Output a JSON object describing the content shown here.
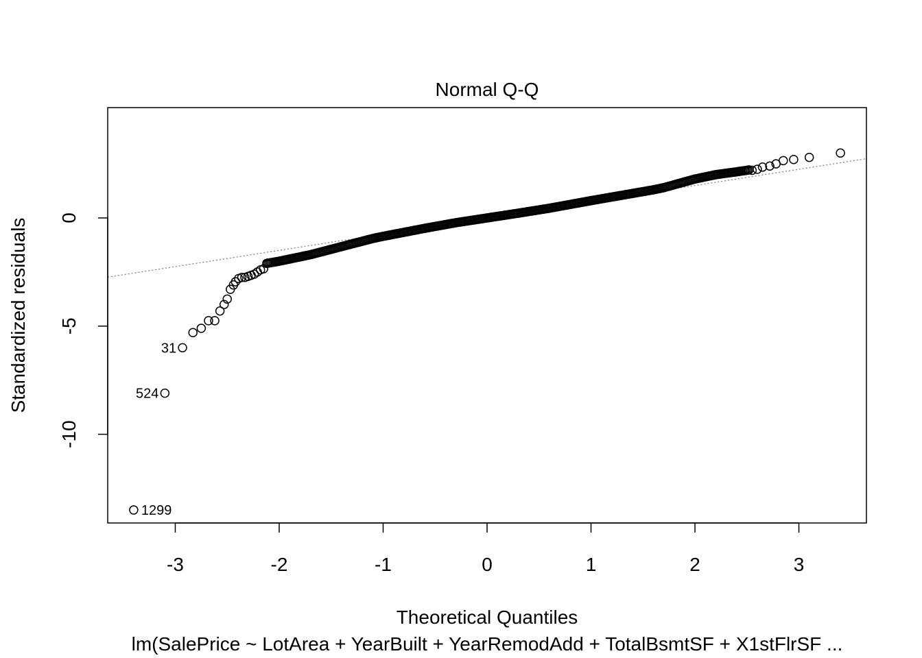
{
  "chart_data": {
    "type": "scatter",
    "title": "Normal Q-Q",
    "xlabel": "Theoretical Quantiles",
    "ylabel": "Standardized residuals",
    "subtitle": "lm(SalePrice ~ LotArea + YearBuilt + YearRemodAdd + TotalBsmtSF + X1stFlrSF ...",
    "xlim": [
      -3.65,
      3.65
    ],
    "ylim": [
      -14.1,
      5.1
    ],
    "xticks": [
      -3,
      -2,
      -1,
      0,
      1,
      2,
      3
    ],
    "xtick_labels": [
      "-3",
      "-2",
      "-1",
      "0",
      "1",
      "2",
      "3"
    ],
    "yticks": [
      -10,
      -5,
      0
    ],
    "ytick_labels": [
      "-10",
      "-5",
      "0"
    ],
    "reference_line": {
      "slope": 0.75,
      "intercept": 0.0,
      "style": "dotted",
      "color": "#808080"
    },
    "labeled_points": [
      {
        "label": "1299",
        "x": -3.4,
        "y": -13.5,
        "side": "right"
      },
      {
        "label": "524",
        "x": -3.1,
        "y": -8.1,
        "side": "left"
      },
      {
        "label": "31",
        "x": -2.93,
        "y": -6.0,
        "side": "left"
      }
    ],
    "tail_points": [
      [
        -2.83,
        -5.3
      ],
      [
        -2.75,
        -5.1
      ],
      [
        -2.68,
        -4.75
      ],
      [
        -2.62,
        -4.75
      ],
      [
        -2.57,
        -4.3
      ],
      [
        -2.53,
        -4.0
      ],
      [
        -2.5,
        -3.75
      ],
      [
        -2.47,
        -3.3
      ],
      [
        -2.44,
        -3.1
      ],
      [
        -2.42,
        -2.95
      ],
      [
        -2.39,
        -2.8
      ],
      [
        -2.36,
        -2.75
      ],
      [
        -2.33,
        -2.75
      ],
      [
        -2.3,
        -2.7
      ],
      [
        -2.27,
        -2.65
      ],
      [
        -2.24,
        -2.6
      ],
      [
        -2.21,
        -2.5
      ],
      [
        -2.18,
        -2.4
      ],
      [
        -2.15,
        -2.35
      ],
      [
        2.55,
        2.2
      ],
      [
        2.6,
        2.25
      ],
      [
        2.65,
        2.35
      ],
      [
        2.72,
        2.4
      ],
      [
        2.78,
        2.5
      ],
      [
        2.85,
        2.65
      ],
      [
        2.95,
        2.7
      ],
      [
        3.1,
        2.8
      ],
      [
        3.4,
        3.0
      ]
    ],
    "main_body": {
      "n_points": 380,
      "x_from": -2.12,
      "x_to": 2.52,
      "curve": [
        [
          -2.12,
          -2.1
        ],
        [
          -2.0,
          -2.0
        ],
        [
          -1.7,
          -1.7
        ],
        [
          -1.5,
          -1.45
        ],
        [
          -1.3,
          -1.2
        ],
        [
          -1.1,
          -0.95
        ],
        [
          -1.0,
          -0.85
        ],
        [
          -0.6,
          -0.48
        ],
        [
          -0.3,
          -0.22
        ],
        [
          0.0,
          0.0
        ],
        [
          0.3,
          0.22
        ],
        [
          0.6,
          0.45
        ],
        [
          1.0,
          0.8
        ],
        [
          1.3,
          1.05
        ],
        [
          1.6,
          1.3
        ],
        [
          1.7,
          1.4
        ],
        [
          2.0,
          1.8
        ],
        [
          2.2,
          2.0
        ],
        [
          2.5,
          2.2
        ],
        [
          2.52,
          2.22
        ]
      ]
    }
  }
}
